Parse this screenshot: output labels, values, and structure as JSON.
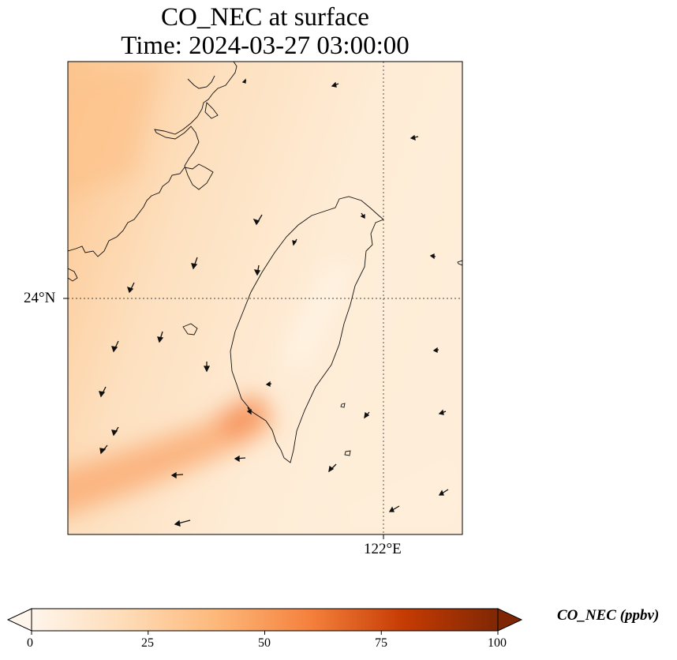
{
  "title": {
    "line1": "CO_NEC at surface",
    "line2": "Time: 2024-03-27 03:00:00"
  },
  "map": {
    "lat_label": "24°N",
    "lon_label": "122°E"
  },
  "colorbar": {
    "title": "CO_NEC (ppbv)",
    "ticks": [
      "0",
      "25",
      "50",
      "75",
      "100"
    ],
    "colors": [
      "#fff5eb",
      "#fdd7ad",
      "#fdac67",
      "#f16f2c",
      "#c13a03",
      "#7f2704"
    ],
    "extend": "both"
  }
}
